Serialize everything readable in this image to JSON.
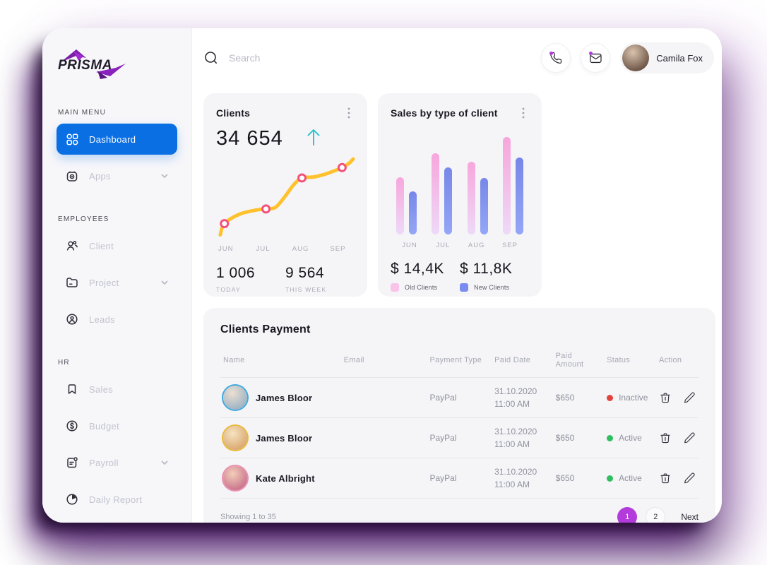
{
  "app": {
    "brand": "PRISMA"
  },
  "colors": {
    "accent_blue": "#0b6fe4",
    "accent_purple": "#b43bdb",
    "line_yellow": "#ffc22e",
    "marker_pink": "#f4517d",
    "arrow_teal": "#35c4ce",
    "status_active": "#2fbf5f",
    "status_inactive": "#e2443c",
    "old_clients_pink": "#f9c4ea",
    "new_clients_blue": "#7c8bf0"
  },
  "sidebar": {
    "sections": [
      {
        "label": "MAIN MENU",
        "items": [
          {
            "label": "Dashboard",
            "icon": "dashboard-icon",
            "active": true,
            "chevron": false
          },
          {
            "label": "Apps",
            "icon": "apps-icon",
            "active": false,
            "chevron": true
          }
        ]
      },
      {
        "label": "EMPLOYEES",
        "items": [
          {
            "label": "Client",
            "icon": "client-icon",
            "active": false,
            "chevron": false
          },
          {
            "label": "Project",
            "icon": "project-icon",
            "active": false,
            "chevron": true
          },
          {
            "label": "Leads",
            "icon": "leads-icon",
            "active": false,
            "chevron": false
          }
        ]
      },
      {
        "label": "HR",
        "items": [
          {
            "label": "Sales",
            "icon": "sales-icon",
            "active": false,
            "chevron": false
          },
          {
            "label": "Budget",
            "icon": "budget-icon",
            "active": false,
            "chevron": false
          },
          {
            "label": "Payroll",
            "icon": "payroll-icon",
            "active": false,
            "chevron": true
          },
          {
            "label": "Daily Report",
            "icon": "daily-report-icon",
            "active": false,
            "chevron": false
          }
        ]
      }
    ]
  },
  "topbar": {
    "search_placeholder": "Search",
    "user_name": "Camila Fox"
  },
  "cards": {
    "clients": {
      "title": "Clients",
      "value": "34 654",
      "trend": "up",
      "stats": [
        {
          "value": "1 006",
          "label": "TODAY"
        },
        {
          "value": "9 564",
          "label": "THIS WEEK"
        }
      ]
    },
    "sales": {
      "title": "Sales by type of client",
      "totals": [
        {
          "value": "$ 14,4K",
          "legend": "Old Clients"
        },
        {
          "value": "$ 11,8K",
          "legend": "New Clients"
        }
      ]
    }
  },
  "chart_data": [
    {
      "type": "line",
      "title": "Clients",
      "x": [
        "JUN",
        "JUL",
        "AUG",
        "SEP"
      ],
      "values": [
        20,
        37,
        73,
        85
      ],
      "marker_x_percent": [
        6,
        36,
        62,
        91
      ],
      "label_x_percent": [
        7,
        34,
        61,
        88
      ],
      "shape_points": [
        [
          3,
          7
        ],
        [
          6,
          20
        ],
        [
          17,
          31
        ],
        [
          30,
          36
        ],
        [
          36,
          37
        ],
        [
          43,
          39
        ],
        [
          50,
          52
        ],
        [
          56,
          65
        ],
        [
          62,
          73
        ],
        [
          70,
          74
        ],
        [
          78,
          77
        ],
        [
          85,
          81
        ],
        [
          91,
          85
        ],
        [
          96,
          90
        ],
        [
          99,
          95
        ]
      ],
      "ylim": [
        0,
        100
      ],
      "grid": false,
      "line_color": "#ffc22e",
      "marker_color": "#f4517d"
    },
    {
      "type": "bar",
      "title": "Sales by type of client",
      "categories": [
        "JUN",
        "JUL",
        "AUG",
        "SEP"
      ],
      "series": [
        {
          "name": "Old Clients",
          "values": [
            59,
            83,
            75,
            100
          ],
          "color_top": "#f7a6db",
          "color_bottom": "#eed9f8"
        },
        {
          "name": "New Clients",
          "values": [
            44,
            69,
            58,
            79
          ],
          "color_top": "#7787e8",
          "color_bottom": "#94a6f6"
        }
      ],
      "unit": "percent-of-max",
      "ylim": [
        0,
        100
      ],
      "grid": false,
      "legend_position": "bottom"
    }
  ],
  "table": {
    "title": "Clients Payment",
    "columns": [
      "Name",
      "Email",
      "Payment Type",
      "Paid Date",
      "Paid Amount",
      "Status",
      "Action"
    ],
    "rows": [
      {
        "name": "James Bloor",
        "payment_type": "PayPal",
        "paid_date": "31.10.2020",
        "paid_time": "11:00 AM",
        "paid_amount": "$650",
        "status": "Inactive",
        "status_color": "#e2443c",
        "avatar_ring": "#3fa9e0"
      },
      {
        "name": "James Bloor",
        "payment_type": "PayPal",
        "paid_date": "31.10.2020",
        "paid_time": "11:00 AM",
        "paid_amount": "$650",
        "status": "Active",
        "status_color": "#2fbf5f",
        "avatar_ring": "#e9b83a"
      },
      {
        "name": "Kate Albright",
        "payment_type": "PayPal",
        "paid_date": "31.10.2020",
        "paid_time": "11:00 AM",
        "paid_amount": "$650",
        "status": "Active",
        "status_color": "#2fbf5f",
        "avatar_ring": "#e88fb0"
      }
    ],
    "footer": {
      "showing": "Showing 1 to 35",
      "pages": [
        "1",
        "2"
      ],
      "active_page": "1",
      "next_label": "Next"
    }
  }
}
